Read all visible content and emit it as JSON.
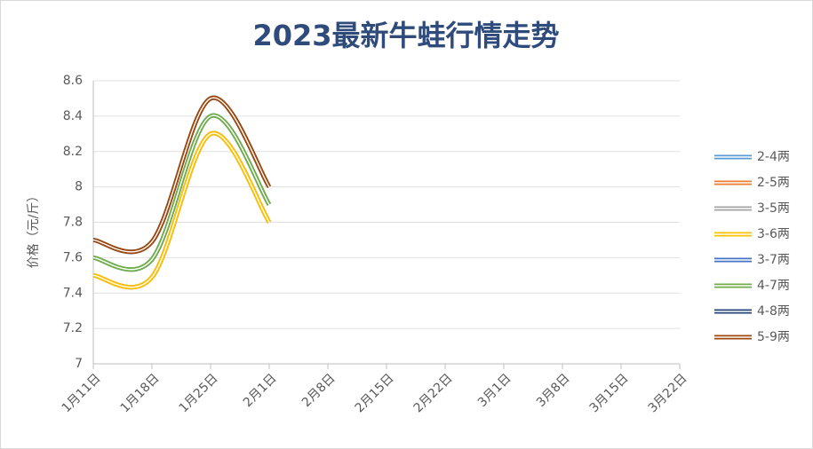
{
  "chart_data": {
    "type": "line",
    "title": "2023最新牛蛙行情走势",
    "y_label": "价格（元/斤）",
    "categories": [
      "1月11日",
      "1月18日",
      "1月25日",
      "2月1日",
      "2月8日",
      "2月15日",
      "2月22日",
      "3月1日",
      "3月8日",
      "3月15日",
      "3月22日"
    ],
    "series": [
      {
        "name": "2-4两",
        "color": "#5b9bd5",
        "values": [
          7.5,
          7.49,
          8.3,
          7.8,
          null,
          null,
          null,
          null,
          null,
          null,
          null
        ]
      },
      {
        "name": "2-5两",
        "color": "#ed7d31",
        "values": [
          7.5,
          7.49,
          8.3,
          7.8,
          null,
          null,
          null,
          null,
          null,
          null,
          null
        ]
      },
      {
        "name": "3-5两",
        "color": "#a5a5a5",
        "values": [
          7.5,
          7.49,
          8.3,
          7.8,
          null,
          null,
          null,
          null,
          null,
          null,
          null
        ]
      },
      {
        "name": "3-6两",
        "color": "#ffc000",
        "values": [
          7.5,
          7.49,
          8.3,
          7.8,
          null,
          null,
          null,
          null,
          null,
          null,
          null
        ]
      },
      {
        "name": "3-7两",
        "color": "#4472c4",
        "values": [
          7.6,
          7.59,
          8.4,
          7.9,
          null,
          null,
          null,
          null,
          null,
          null,
          null
        ]
      },
      {
        "name": "4-7两",
        "color": "#70ad47",
        "values": [
          7.6,
          7.59,
          8.4,
          7.9,
          null,
          null,
          null,
          null,
          null,
          null,
          null
        ]
      },
      {
        "name": "4-8两",
        "color": "#264478",
        "values": [
          7.7,
          7.69,
          8.5,
          8.0,
          null,
          null,
          null,
          null,
          null,
          null,
          null
        ]
      },
      {
        "name": "5-9两",
        "color": "#9e480e",
        "values": [
          7.7,
          7.69,
          8.5,
          8.0,
          null,
          null,
          null,
          null,
          null,
          null,
          null
        ]
      }
    ],
    "ylim": [
      7,
      8.6
    ],
    "yticks": [
      7,
      7.2,
      7.4,
      7.6,
      7.8,
      8,
      8.2,
      8.4,
      8.6
    ],
    "grid": true,
    "legend": "right"
  }
}
